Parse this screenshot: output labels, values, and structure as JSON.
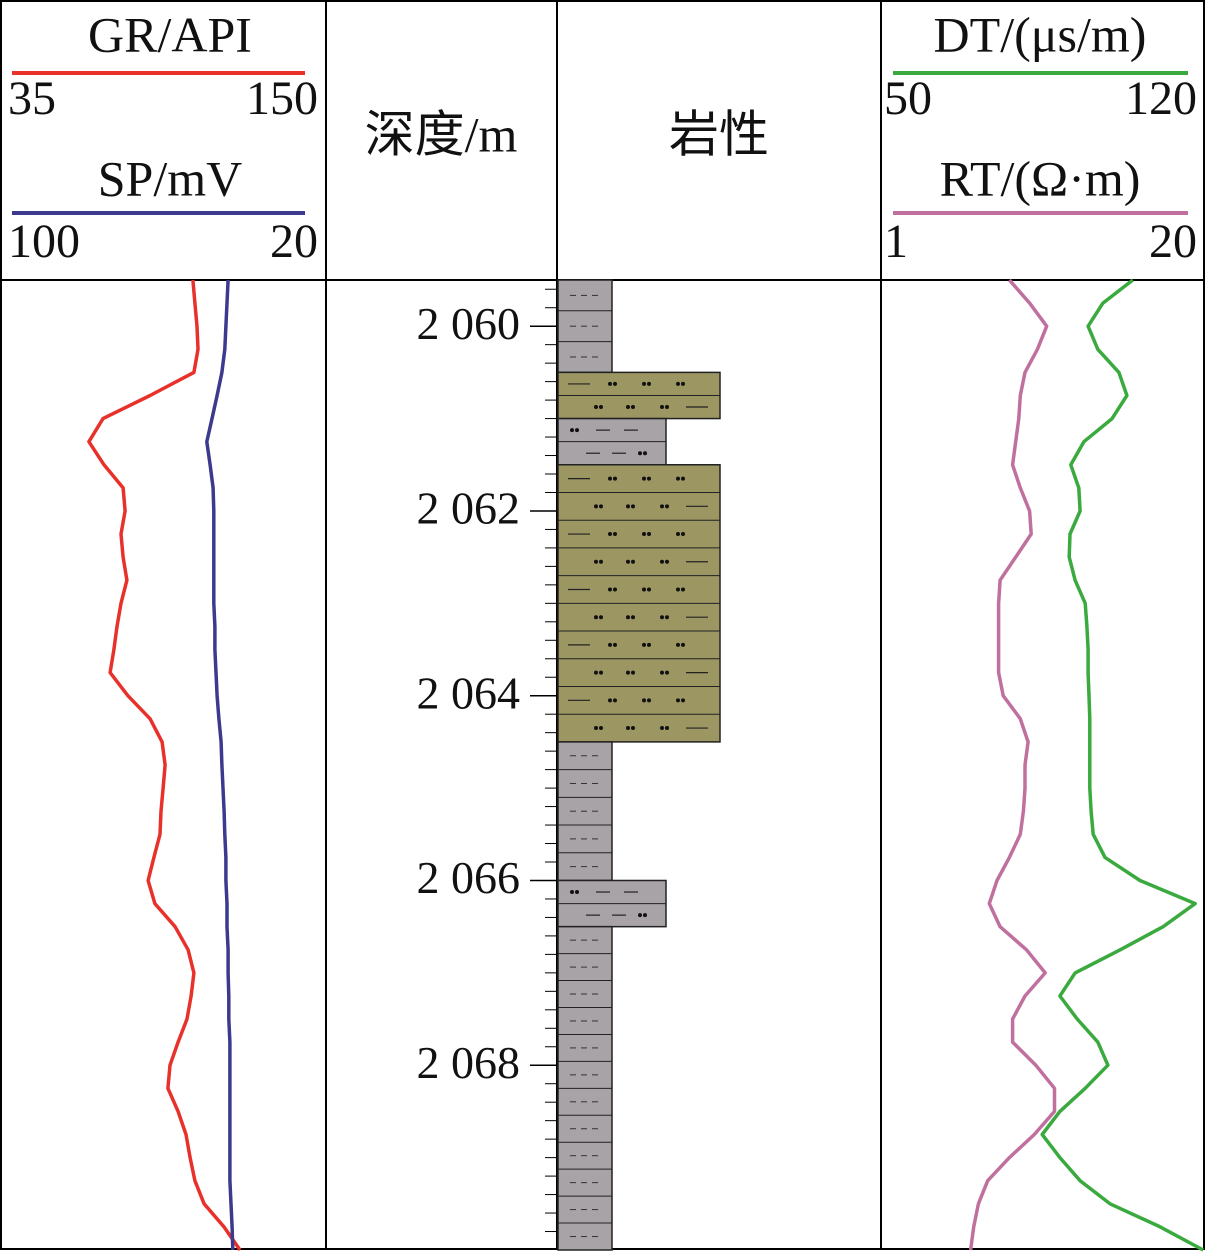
{
  "chart_data": {
    "type": "well-log",
    "depth_label": "深度/m",
    "lithology_label": "岩性",
    "ylim": [
      2059.5,
      2070
    ],
    "yticks": [
      {
        "value": 2060,
        "label": "2 060"
      },
      {
        "value": 2062,
        "label": "2 062"
      },
      {
        "value": 2064,
        "label": "2 064"
      },
      {
        "value": 2066,
        "label": "2 066"
      },
      {
        "value": 2068,
        "label": "2 068"
      }
    ],
    "yminor": [
      2059.6,
      2059.8,
      2060.2,
      2060.4,
      2060.6,
      2060.8,
      2061,
      2061.2,
      2061.4,
      2061.6,
      2061.8,
      2062.2,
      2062.4,
      2062.6,
      2062.8,
      2063,
      2063.2,
      2063.4,
      2063.6,
      2063.8,
      2064.2,
      2064.4,
      2064.6,
      2064.8,
      2065,
      2065.2,
      2065.4,
      2065.6,
      2065.8,
      2066.2,
      2066.4,
      2066.6,
      2066.8,
      2067,
      2067.2,
      2067.4,
      2067.6,
      2067.8,
      2068.2,
      2068.4,
      2068.6,
      2068.8,
      2069,
      2069.2,
      2069.4,
      2069.6,
      2069.8
    ],
    "depths": [
      2059.5,
      2059.75,
      2060,
      2060.25,
      2060.5,
      2060.75,
      2061,
      2061.25,
      2061.5,
      2061.75,
      2062,
      2062.25,
      2062.5,
      2062.75,
      2063,
      2063.25,
      2063.5,
      2063.75,
      2064,
      2064.25,
      2064.5,
      2064.75,
      2065,
      2065.25,
      2065.5,
      2065.75,
      2066,
      2066.25,
      2066.5,
      2066.75,
      2067,
      2067.25,
      2067.5,
      2067.75,
      2068,
      2068.25,
      2068.5,
      2068.75,
      2069,
      2069.25,
      2069.5,
      2069.75,
      2070
    ],
    "tracks": [
      {
        "series": [
          {
            "name": "GR/API",
            "color": "#e8312b",
            "xlim": [
              35,
              150
            ],
            "values": [
              106.0,
              106.8,
              107.6,
              108.0,
              106.4,
              89.2,
              70.7,
              65.2,
              71.1,
              78.6,
              79.4,
              77.8,
              78.6,
              80.1,
              77.8,
              76.2,
              75.0,
              73.5,
              80.5,
              89.2,
              93.9,
              95.1,
              94.3,
              93.5,
              93.1,
              90.7,
              88.4,
              91.1,
              99.0,
              104.1,
              106.4,
              105.3,
              103.7,
              100.2,
              97.0,
              96.2,
              100.2,
              103.3,
              104.9,
              106.8,
              110.4,
              118.2,
              124.5
            ]
          },
          {
            "name": "SP/mV",
            "color": "#3c3a8e",
            "xlim": [
              100,
              20
            ],
            "values": [
              41.0,
              41.3,
              41.6,
              41.9,
              42.7,
              44.0,
              45.4,
              46.8,
              45.9,
              45.1,
              44.9,
              44.9,
              44.9,
              44.9,
              44.9,
              44.6,
              44.6,
              44.3,
              44.0,
              43.5,
              42.9,
              42.7,
              42.4,
              42.1,
              41.9,
              41.6,
              41.6,
              41.3,
              41.3,
              41.0,
              41.0,
              40.8,
              40.8,
              40.5,
              40.5,
              40.5,
              40.5,
              40.5,
              40.5,
              40.5,
              40.2,
              39.9,
              39.7
            ]
          }
        ]
      },
      {
        "series": [
          {
            "name": "DT/(μs/m)",
            "color": "#3aaa3e",
            "xlim": [
              50,
              120
            ],
            "values": [
              106.9,
              99.8,
              96.3,
              98.6,
              103.6,
              105.5,
              102.0,
              95.3,
              92.2,
              94.1,
              94.4,
              92.0,
              91.8,
              93.2,
              95.6,
              96.0,
              96.3,
              96.3,
              96.5,
              96.7,
              96.7,
              96.7,
              96.7,
              97.0,
              97.5,
              100.3,
              108.6,
              121.7,
              114.1,
              103.9,
              93.2,
              89.6,
              93.7,
              98.6,
              101.0,
              95.6,
              89.6,
              85.4,
              89.6,
              94.4,
              101.5,
              113.4,
              123.6
            ]
          },
          {
            "name": "RT/(Ω·m)",
            "color": "#c0709e",
            "xlim": [
              1,
              20
            ],
            "values": [
              8.5,
              9.8,
              10.9,
              10.3,
              9.5,
              9.2,
              9.1,
              8.9,
              8.7,
              9.2,
              9.8,
              9.9,
              8.9,
              7.9,
              7.8,
              7.8,
              7.8,
              7.8,
              8.1,
              9.2,
              9.7,
              9.5,
              9.5,
              9.4,
              9.2,
              8.5,
              7.7,
              7.2,
              7.9,
              9.6,
              10.8,
              9.5,
              8.7,
              8.7,
              10.2,
              11.4,
              11.4,
              10.1,
              8.5,
              7.1,
              6.5,
              6.2,
              6.0
            ]
          }
        ]
      }
    ],
    "lithology": [
      {
        "top": 2059.5,
        "bottom": 2060.5,
        "color": "#a7a3a7",
        "pattern": "dash"
      },
      {
        "top": 2060.5,
        "bottom": 2061.0,
        "color": "#9b9662",
        "pattern": "dot-dash"
      },
      {
        "top": 2061.0,
        "bottom": 2061.5,
        "color": "#a7a3a7",
        "pattern": "dot-silt"
      },
      {
        "top": 2061.5,
        "bottom": 2064.5,
        "color": "#9b9662",
        "pattern": "dot-dash"
      },
      {
        "top": 2064.5,
        "bottom": 2066.0,
        "color": "#a7a3a7",
        "pattern": "dash"
      },
      {
        "top": 2066.0,
        "bottom": 2066.5,
        "color": "#a7a3a7",
        "pattern": "dot-silt"
      },
      {
        "top": 2066.5,
        "bottom": 2070,
        "color": "#a7a3a7",
        "pattern": "dash"
      }
    ]
  }
}
